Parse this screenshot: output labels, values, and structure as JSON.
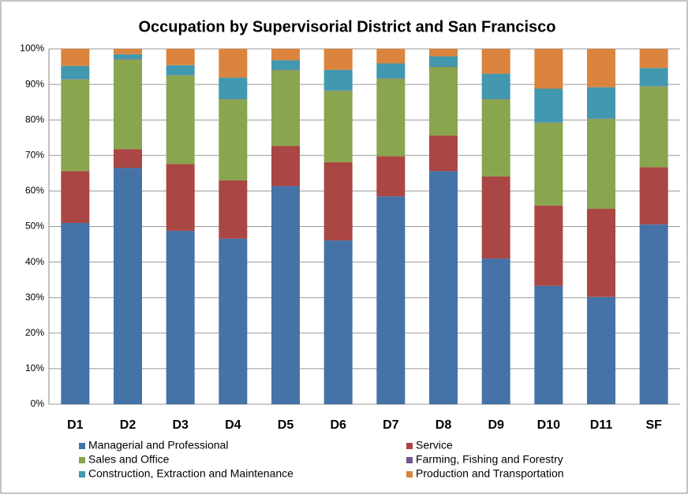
{
  "chart_data": {
    "type": "stacked_bar",
    "title": "Occupation by Supervisorial District and San Francisco",
    "categories": [
      "D1",
      "D2",
      "D3",
      "D4",
      "D5",
      "D6",
      "D7",
      "D8",
      "D9",
      "D10",
      "D11",
      "SF"
    ],
    "series": [
      {
        "name": "Managerial and Professional",
        "color": "#4572a7",
        "values": [
          51.0,
          66.5,
          48.8,
          46.6,
          61.4,
          46.1,
          58.5,
          65.6,
          41.0,
          33.3,
          30.2,
          50.6
        ]
      },
      {
        "name": "Service",
        "color": "#aa4643",
        "values": [
          14.6,
          5.3,
          18.8,
          16.4,
          11.3,
          22.0,
          11.3,
          10.0,
          23.1,
          22.6,
          24.8,
          16.1
        ]
      },
      {
        "name": "Sales and Office",
        "color": "#89a54e",
        "values": [
          25.8,
          25.2,
          24.9,
          22.8,
          21.3,
          20.1,
          21.8,
          19.3,
          21.7,
          23.3,
          25.3,
          22.7
        ]
      },
      {
        "name": "Farming, Fishing and Forestry",
        "color": "#71588f",
        "values": [
          0.1,
          0.1,
          0.1,
          0.1,
          0.1,
          0.1,
          0.1,
          0.1,
          0.1,
          0.1,
          0.1,
          0.1
        ]
      },
      {
        "name": "Construction, Extraction and Maintenance",
        "color": "#4198af",
        "values": [
          3.7,
          1.4,
          2.8,
          6.0,
          2.7,
          5.8,
          4.2,
          2.9,
          7.1,
          9.5,
          8.8,
          5.1
        ]
      },
      {
        "name": "Production and Transportation",
        "color": "#db843d",
        "values": [
          4.8,
          1.5,
          4.6,
          8.1,
          3.2,
          5.9,
          4.1,
          2.1,
          7.0,
          11.2,
          10.8,
          5.4
        ]
      }
    ],
    "ylim": [
      0,
      100
    ],
    "yticks": [
      {
        "value": 0,
        "label": "0%"
      },
      {
        "value": 10,
        "label": "10%"
      },
      {
        "value": 20,
        "label": "20%"
      },
      {
        "value": 30,
        "label": "30%"
      },
      {
        "value": 40,
        "label": "40%"
      },
      {
        "value": 50,
        "label": "50%"
      },
      {
        "value": 60,
        "label": "60%"
      },
      {
        "value": 70,
        "label": "70%"
      },
      {
        "value": 80,
        "label": "80%"
      },
      {
        "value": 90,
        "label": "90%"
      },
      {
        "value": 100,
        "label": "100%"
      }
    ],
    "grid": true
  }
}
